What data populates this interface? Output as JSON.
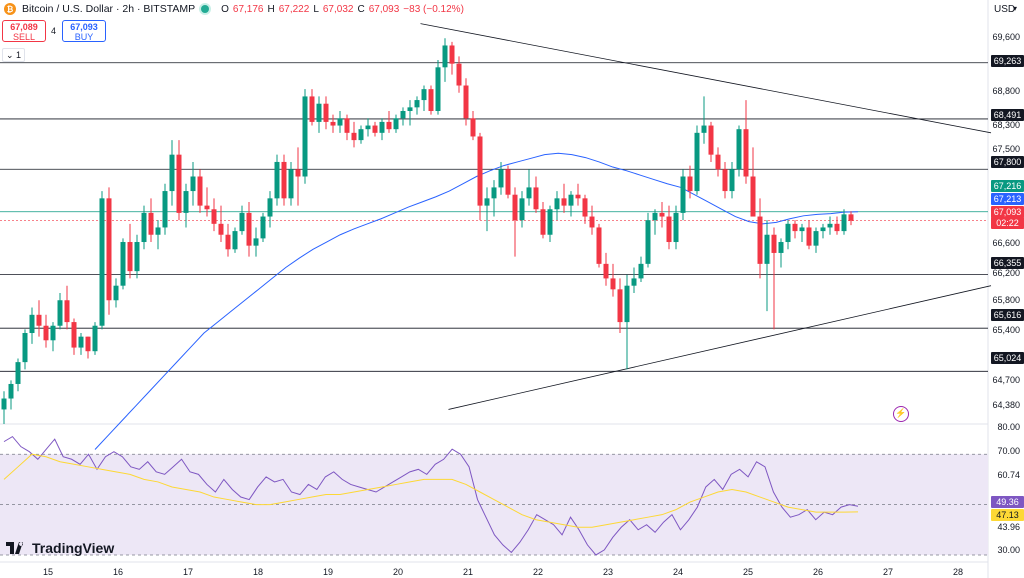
{
  "header": {
    "symbol_title": "Bitcoin / U.S. Dollar · 2h · BITSTAMP",
    "ohlc": {
      "o_label": "O",
      "o": "67,176",
      "h_label": "H",
      "h": "67,222",
      "l_label": "L",
      "l": "67,032",
      "c_label": "C",
      "c": "67,093",
      "change": "−83 (−0.12%)"
    }
  },
  "trade": {
    "sell_price": "67,089",
    "sell_label": "SELL",
    "spread": "4",
    "buy_price": "67,093",
    "buy_label": "BUY"
  },
  "collapse_label": "⌄ 1",
  "currency": "USD",
  "price_axis": [
    "69,600",
    "68,800",
    "68,300",
    "67,500",
    "66,600",
    "66,200",
    "65,800",
    "65,400",
    "64,700",
    "64,380"
  ],
  "horizontal_levels": [
    {
      "label": "69,263",
      "value": 69263
    },
    {
      "label": "68,491",
      "value": 68491
    },
    {
      "label": "67,800",
      "value": 67800
    },
    {
      "label": "66,355",
      "value": 66355
    },
    {
      "label": "65,616",
      "value": 65616
    },
    {
      "label": "65,024",
      "value": 65024
    }
  ],
  "price_badges": {
    "ma": "67,216",
    "ma2": "67,213",
    "last": "67,093",
    "countdown": "02:22"
  },
  "rsi_axis": [
    "80.00",
    "70.00",
    "60.74",
    "43.96",
    "30.00"
  ],
  "rsi_badges": {
    "rsi": "49.36",
    "signal": "47.13"
  },
  "x_axis": [
    "15",
    "16",
    "17",
    "18",
    "19",
    "20",
    "21",
    "22",
    "23",
    "24",
    "25",
    "26",
    "27",
    "28"
  ],
  "brand": "TradingView",
  "colors": {
    "up": "#089981",
    "down": "#f23645",
    "ma": "#2962ff",
    "rsi": "#7e57c2",
    "rsi_signal": "#fdd835",
    "rsi_band": "#ede7f6",
    "support": "#131722"
  },
  "chart_data": {
    "type": "candlestick",
    "price_range": [
      64300,
      69850
    ],
    "rsi_range": [
      28,
      82
    ],
    "candles_ohlc": [
      [
        64500,
        64750,
        64300,
        64650
      ],
      [
        64650,
        64900,
        64500,
        64850
      ],
      [
        64850,
        65200,
        64750,
        65150
      ],
      [
        65150,
        65600,
        65050,
        65550
      ],
      [
        65550,
        65900,
        65400,
        65800
      ],
      [
        65800,
        66000,
        65500,
        65650
      ],
      [
        65650,
        65800,
        65350,
        65450
      ],
      [
        65450,
        65700,
        65300,
        65650
      ],
      [
        65650,
        66100,
        65600,
        66000
      ],
      [
        66000,
        66200,
        65600,
        65700
      ],
      [
        65700,
        65750,
        65250,
        65350
      ],
      [
        65350,
        65550,
        65250,
        65500
      ],
      [
        65500,
        65500,
        65200,
        65300
      ],
      [
        65300,
        65700,
        65250,
        65650
      ],
      [
        65650,
        67500,
        65600,
        67400
      ],
      [
        67400,
        67550,
        65800,
        66000
      ],
      [
        66000,
        66300,
        65900,
        66200
      ],
      [
        66200,
        66850,
        66150,
        66800
      ],
      [
        66800,
        67050,
        66300,
        66400
      ],
      [
        66400,
        66900,
        66300,
        66800
      ],
      [
        66800,
        67300,
        66700,
        67200
      ],
      [
        67200,
        67400,
        66800,
        66900
      ],
      [
        66900,
        67100,
        66700,
        67000
      ],
      [
        67000,
        67600,
        66900,
        67500
      ],
      [
        67500,
        68200,
        67300,
        68000
      ],
      [
        68000,
        68200,
        67100,
        67200
      ],
      [
        67200,
        67600,
        67000,
        67500
      ],
      [
        67500,
        67900,
        67300,
        67700
      ],
      [
        67700,
        67800,
        67200,
        67300
      ],
      [
        67300,
        67550,
        67150,
        67250
      ],
      [
        67250,
        67400,
        66950,
        67050
      ],
      [
        67050,
        67300,
        66800,
        66900
      ],
      [
        66900,
        67050,
        66600,
        66700
      ],
      [
        66700,
        67000,
        66650,
        66950
      ],
      [
        66950,
        67300,
        66900,
        67200
      ],
      [
        67200,
        67350,
        66600,
        66750
      ],
      [
        66750,
        67000,
        66600,
        66850
      ],
      [
        66850,
        67200,
        66800,
        67150
      ],
      [
        67150,
        67500,
        67000,
        67400
      ],
      [
        67400,
        68000,
        67300,
        67900
      ],
      [
        67900,
        68000,
        67300,
        67400
      ],
      [
        67400,
        67900,
        67300,
        67800
      ],
      [
        67800,
        68100,
        67300,
        67700
      ],
      [
        67700,
        68900,
        67600,
        68800
      ],
      [
        68800,
        68900,
        68400,
        68450
      ],
      [
        68450,
        68800,
        68300,
        68700
      ],
      [
        68700,
        68800,
        68350,
        68450
      ],
      [
        68450,
        68550,
        68300,
        68400
      ],
      [
        68400,
        68600,
        68300,
        68500
      ],
      [
        68500,
        68550,
        68200,
        68300
      ],
      [
        68300,
        68450,
        68100,
        68200
      ],
      [
        68200,
        68400,
        68150,
        68350
      ],
      [
        68350,
        68500,
        68250,
        68400
      ],
      [
        68400,
        68450,
        68250,
        68300
      ],
      [
        68300,
        68500,
        68200,
        68450
      ],
      [
        68450,
        68600,
        68300,
        68350
      ],
      [
        68350,
        68550,
        68300,
        68500
      ],
      [
        68500,
        68650,
        68400,
        68600
      ],
      [
        68600,
        68750,
        68400,
        68650
      ],
      [
        68650,
        68800,
        68550,
        68750
      ],
      [
        68750,
        68950,
        68600,
        68900
      ],
      [
        68900,
        68950,
        68550,
        68600
      ],
      [
        68600,
        69300,
        68550,
        69200
      ],
      [
        69200,
        69600,
        69000,
        69500
      ],
      [
        69500,
        69550,
        69100,
        69250
      ],
      [
        69250,
        69350,
        68850,
        68950
      ],
      [
        68950,
        69050,
        68400,
        68500
      ],
      [
        68500,
        68600,
        68200,
        68250
      ],
      [
        68250,
        68300,
        67100,
        67300
      ],
      [
        67300,
        67550,
        66950,
        67400
      ],
      [
        67400,
        67650,
        67150,
        67550
      ],
      [
        67550,
        67900,
        67450,
        67800
      ],
      [
        67800,
        67850,
        67400,
        67450
      ],
      [
        67450,
        67550,
        66600,
        67100
      ],
      [
        67100,
        67500,
        67000,
        67400
      ],
      [
        67400,
        67800,
        67300,
        67550
      ],
      [
        67550,
        67700,
        67200,
        67250
      ],
      [
        67250,
        67350,
        66850,
        66900
      ],
      [
        66900,
        67300,
        66800,
        67250
      ],
      [
        67250,
        67500,
        67100,
        67400
      ],
      [
        67400,
        67600,
        67200,
        67300
      ],
      [
        67300,
        67500,
        67150,
        67450
      ],
      [
        67450,
        67600,
        67300,
        67400
      ],
      [
        67400,
        67450,
        67050,
        67150
      ],
      [
        67150,
        67300,
        66900,
        67000
      ],
      [
        67000,
        67050,
        66450,
        66500
      ],
      [
        66500,
        66650,
        66200,
        66300
      ],
      [
        66300,
        66500,
        66050,
        66150
      ],
      [
        66150,
        66300,
        65550,
        65700
      ],
      [
        65700,
        66350,
        65050,
        66200
      ],
      [
        66200,
        66450,
        66100,
        66300
      ],
      [
        66300,
        66600,
        66250,
        66500
      ],
      [
        66500,
        67200,
        66450,
        67100
      ],
      [
        67100,
        67250,
        66900,
        67200
      ],
      [
        67200,
        67350,
        67000,
        67150
      ],
      [
        67150,
        67300,
        66700,
        66800
      ],
      [
        66800,
        67300,
        66700,
        67200
      ],
      [
        67200,
        67800,
        67100,
        67700
      ],
      [
        67700,
        67850,
        67400,
        67500
      ],
      [
        67500,
        68400,
        67450,
        68300
      ],
      [
        68300,
        68800,
        68150,
        68400
      ],
      [
        68400,
        68450,
        67900,
        68000
      ],
      [
        68000,
        68100,
        67700,
        67800
      ],
      [
        67800,
        67900,
        67400,
        67500
      ],
      [
        67500,
        67900,
        67400,
        67800
      ],
      [
        67800,
        68400,
        67700,
        68350
      ],
      [
        68350,
        68750,
        67600,
        67700
      ],
      [
        67700,
        68100,
        67400,
        67150
      ],
      [
        67150,
        67400,
        66300,
        66500
      ],
      [
        66500,
        67100,
        65850,
        66900
      ],
      [
        66900,
        67000,
        65600,
        66650
      ],
      [
        66650,
        66850,
        66450,
        66800
      ],
      [
        66800,
        67100,
        66700,
        67050
      ],
      [
        67050,
        67100,
        66850,
        66950
      ],
      [
        66950,
        67050,
        66800,
        67000
      ],
      [
        67000,
        67100,
        66700,
        66750
      ],
      [
        66750,
        67000,
        66650,
        66950
      ],
      [
        66950,
        67050,
        66850,
        67000
      ],
      [
        67000,
        67150,
        66900,
        67050
      ],
      [
        67050,
        67150,
        66900,
        66950
      ],
      [
        66950,
        67250,
        66900,
        67180
      ],
      [
        67180,
        67222,
        67032,
        67093
      ]
    ],
    "ma_values": [
      63950,
      64150,
      64350,
      64550,
      64750,
      64950,
      65150,
      65350,
      65550,
      65700,
      65850,
      66000,
      66150,
      66300,
      66450,
      66580,
      66700,
      66800,
      66900,
      66980,
      67050,
      67120,
      67200,
      67280,
      67350,
      67420,
      67500,
      67600,
      67700,
      67780,
      67850,
      67900,
      67950,
      68000,
      68020,
      68000,
      67960,
      67900,
      67830,
      67780,
      67720,
      67660,
      67600,
      67550,
      67450,
      67350,
      67250,
      67150,
      67080,
      67050,
      67070,
      67120,
      67160,
      67180,
      67190,
      67210,
      67216
    ],
    "support_line": [
      [
        63.5,
        64500
      ],
      [
        141,
        66200
      ]
    ],
    "resistance_line": [
      [
        59.5,
        69800
      ],
      [
        141,
        68300
      ]
    ],
    "rsi_values": [
      75,
      77,
      73,
      71,
      68,
      72,
      76,
      69,
      68,
      66,
      70,
      64,
      69,
      71,
      69,
      65,
      64,
      67,
      63,
      62,
      65,
      68,
      63,
      62,
      58,
      55,
      60,
      56,
      53,
      52,
      57,
      61,
      59,
      60,
      55,
      54,
      58,
      56,
      61,
      63,
      60,
      58,
      57,
      56,
      55,
      57,
      59,
      61,
      63,
      64,
      62,
      66,
      68,
      72,
      70,
      65,
      52,
      45,
      38,
      34,
      31,
      35,
      40,
      46,
      44,
      42,
      38,
      45,
      40,
      34,
      30,
      32,
      37,
      41,
      44,
      40,
      42,
      39,
      43,
      46,
      40,
      44,
      49,
      57,
      60,
      56,
      62,
      64,
      61,
      67,
      65,
      55,
      49,
      45,
      46,
      48,
      44,
      47,
      46,
      49,
      50,
      49.36
    ],
    "rsi_signal_values": [
      60,
      65,
      70,
      69,
      67,
      66,
      65,
      64,
      63,
      62,
      60,
      59,
      57,
      56,
      55,
      53,
      52,
      51,
      50,
      50,
      51,
      52,
      53,
      54,
      54,
      55,
      56,
      57,
      58,
      59,
      60,
      60,
      60,
      58,
      55,
      52,
      49,
      46,
      44,
      43,
      42,
      41,
      41,
      42,
      43,
      44,
      45,
      46,
      48,
      51,
      53,
      55,
      56,
      55,
      53,
      51,
      49,
      48,
      47,
      47,
      47,
      47.13
    ]
  }
}
